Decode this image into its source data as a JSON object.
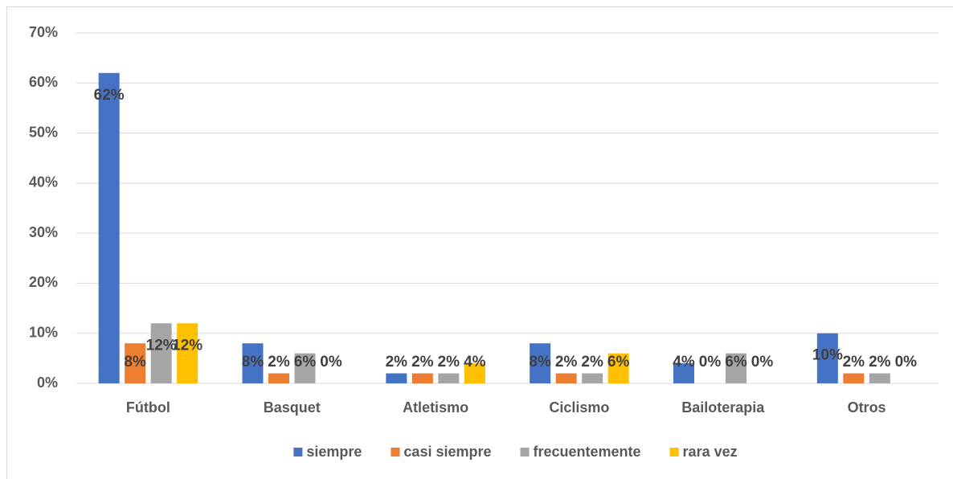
{
  "chart_data": {
    "type": "bar",
    "categories": [
      "Fútbol",
      "Basquet",
      "Atletismo",
      "Ciclismo",
      "Bailoterapia",
      "Otros"
    ],
    "series": [
      {
        "name": "siempre",
        "color": "#4472c4",
        "values": [
          62,
          8,
          2,
          8,
          4,
          10
        ],
        "value_labels": [
          "62%",
          "8%",
          "2%",
          "8%",
          "4%",
          "10%"
        ]
      },
      {
        "name": "casi siempre",
        "color": "#ed7d31",
        "values": [
          8,
          2,
          2,
          2,
          0,
          2
        ],
        "value_labels": [
          "8%",
          "2%",
          "2%",
          "2%",
          "0%",
          "2%"
        ]
      },
      {
        "name": "frecuentemente",
        "color": "#a5a5a5",
        "values": [
          12,
          6,
          2,
          2,
          6,
          2
        ],
        "value_labels": [
          "12%",
          "6%",
          "2%",
          "2%",
          "6%",
          "2%"
        ]
      },
      {
        "name": "rara vez",
        "color": "#ffc000",
        "values": [
          12,
          0,
          4,
          6,
          0,
          0
        ],
        "value_labels": [
          "12%",
          "0%",
          "4%",
          "6%",
          "0%",
          "0%"
        ]
      }
    ],
    "ylim": [
      0,
      70
    ],
    "yticks": [
      {
        "value": 0,
        "label": "0%"
      },
      {
        "value": 10,
        "label": "10%"
      },
      {
        "value": 20,
        "label": "20%"
      },
      {
        "value": 30,
        "label": "30%"
      },
      {
        "value": 40,
        "label": "40%"
      },
      {
        "value": 50,
        "label": "50%"
      },
      {
        "value": 60,
        "label": "60%"
      },
      {
        "value": 70,
        "label": "70%"
      }
    ],
    "grid": true,
    "legend": "bottom"
  }
}
